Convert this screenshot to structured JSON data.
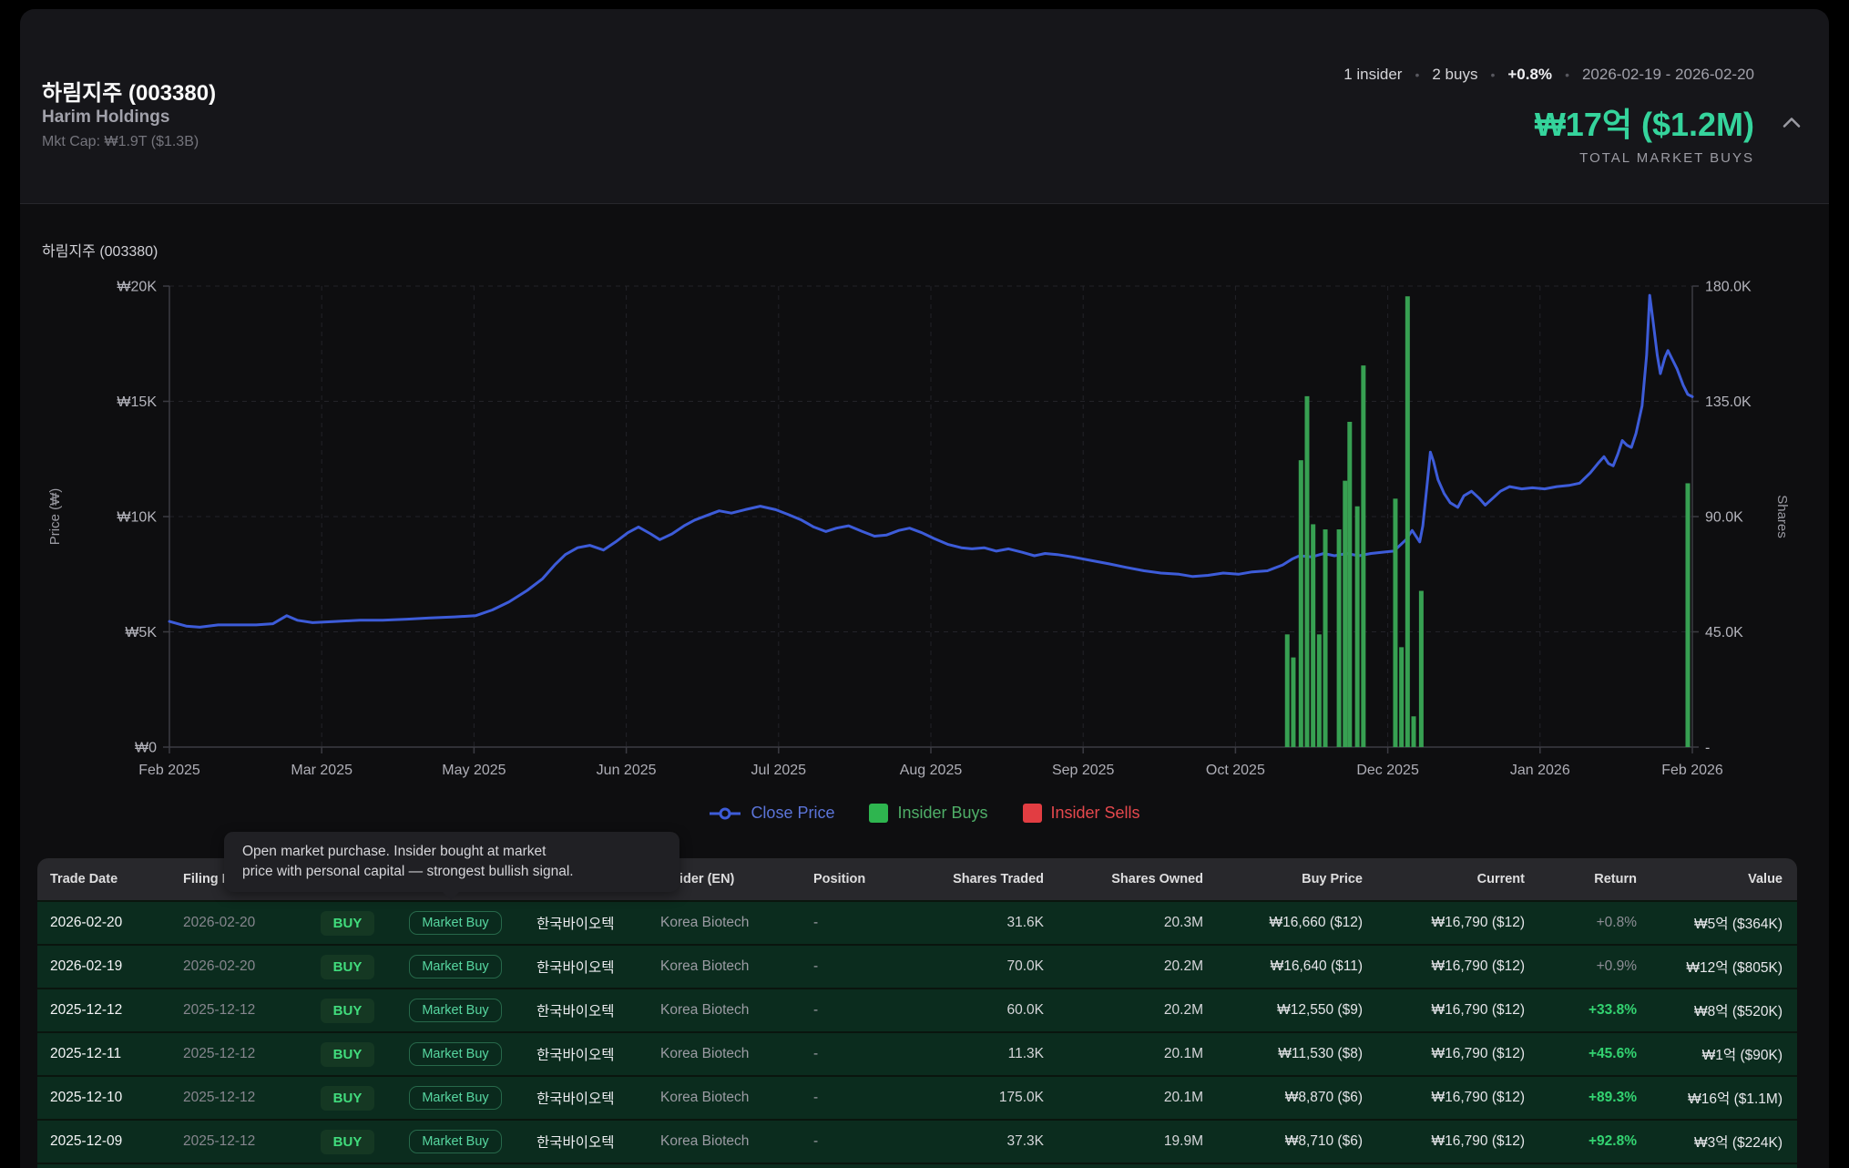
{
  "header": {
    "title": "하림지주 (003380)",
    "subtitle": "Harim Holdings",
    "mktcap": "Mkt Cap: ₩1.9T ($1.3B)",
    "stats": {
      "insiders": "1 insider",
      "buys": "2 buys",
      "change": "+0.8%",
      "range": "2026-02-19 - 2026-02-20",
      "dot": "•"
    },
    "total": {
      "amount": "₩17억 ($1.2M)",
      "label": "TOTAL MARKET BUYS"
    }
  },
  "tooltip": {
    "line1": "Open market purchase. Insider bought at market",
    "line2": "price with personal capital — strongest bullish signal."
  },
  "chart_data": {
    "type": "line+bar",
    "title": "하림지주 (003380)",
    "left_axis": {
      "label": "Price (₩)",
      "ticks": [
        "₩20K",
        "₩15K",
        "₩10K",
        "₩5K",
        "₩0"
      ],
      "range": [
        0,
        20000
      ]
    },
    "right_axis": {
      "label": "Shares",
      "ticks": [
        "180.0K",
        "135.0K",
        "90.0K",
        "45.0K",
        "-"
      ],
      "range": [
        0,
        180000
      ]
    },
    "x_ticks": [
      "Feb 2025",
      "Mar 2025",
      "May 2025",
      "Jun 2025",
      "Jul 2025",
      "Aug 2025",
      "Sep 2025",
      "Oct 2025",
      "Dec 2025",
      "Jan 2026",
      "Feb 2026"
    ],
    "grid": true,
    "legend_position": "bottom",
    "colors": {
      "line": "#3d5cd9",
      "bars": "#37a052",
      "sells": "#e23d42",
      "accent": "#35d49c"
    },
    "series": [
      {
        "name": "Close Price",
        "type": "line",
        "color": "#3d5cd9",
        "points": [
          [
            0.0,
            5450
          ],
          [
            0.011,
            5250
          ],
          [
            0.02,
            5200
          ],
          [
            0.032,
            5300
          ],
          [
            0.043,
            5300
          ],
          [
            0.057,
            5300
          ],
          [
            0.068,
            5350
          ],
          [
            0.077,
            5700
          ],
          [
            0.084,
            5500
          ],
          [
            0.094,
            5400
          ],
          [
            0.109,
            5450
          ],
          [
            0.125,
            5500
          ],
          [
            0.14,
            5500
          ],
          [
            0.156,
            5550
          ],
          [
            0.171,
            5600
          ],
          [
            0.187,
            5650
          ],
          [
            0.201,
            5700
          ],
          [
            0.212,
            5950
          ],
          [
            0.223,
            6300
          ],
          [
            0.235,
            6800
          ],
          [
            0.245,
            7300
          ],
          [
            0.253,
            7900
          ],
          [
            0.26,
            8350
          ],
          [
            0.268,
            8650
          ],
          [
            0.276,
            8750
          ],
          [
            0.285,
            8550
          ],
          [
            0.293,
            8900
          ],
          [
            0.301,
            9300
          ],
          [
            0.308,
            9550
          ],
          [
            0.316,
            9250
          ],
          [
            0.322,
            9000
          ],
          [
            0.33,
            9250
          ],
          [
            0.338,
            9600
          ],
          [
            0.345,
            9850
          ],
          [
            0.353,
            10050
          ],
          [
            0.361,
            10250
          ],
          [
            0.369,
            10150
          ],
          [
            0.378,
            10300
          ],
          [
            0.388,
            10450
          ],
          [
            0.398,
            10300
          ],
          [
            0.406,
            10100
          ],
          [
            0.415,
            9850
          ],
          [
            0.423,
            9550
          ],
          [
            0.431,
            9350
          ],
          [
            0.438,
            9500
          ],
          [
            0.446,
            9600
          ],
          [
            0.455,
            9350
          ],
          [
            0.463,
            9150
          ],
          [
            0.471,
            9200
          ],
          [
            0.479,
            9400
          ],
          [
            0.486,
            9500
          ],
          [
            0.494,
            9300
          ],
          [
            0.502,
            9050
          ],
          [
            0.511,
            8800
          ],
          [
            0.52,
            8650
          ],
          [
            0.527,
            8600
          ],
          [
            0.535,
            8650
          ],
          [
            0.543,
            8500
          ],
          [
            0.551,
            8600
          ],
          [
            0.56,
            8450
          ],
          [
            0.568,
            8300
          ],
          [
            0.575,
            8400
          ],
          [
            0.583,
            8350
          ],
          [
            0.593,
            8250
          ],
          [
            0.605,
            8100
          ],
          [
            0.617,
            7950
          ],
          [
            0.628,
            7800
          ],
          [
            0.64,
            7650
          ],
          [
            0.651,
            7550
          ],
          [
            0.663,
            7500
          ],
          [
            0.672,
            7400
          ],
          [
            0.682,
            7450
          ],
          [
            0.692,
            7550
          ],
          [
            0.702,
            7500
          ],
          [
            0.711,
            7600
          ],
          [
            0.721,
            7650
          ],
          [
            0.731,
            7900
          ],
          [
            0.737,
            8150
          ],
          [
            0.742,
            8300
          ],
          [
            0.75,
            8250
          ],
          [
            0.758,
            8400
          ],
          [
            0.765,
            8300
          ],
          [
            0.773,
            8400
          ],
          [
            0.781,
            8300
          ],
          [
            0.789,
            8400
          ],
          [
            0.796,
            8450
          ],
          [
            0.804,
            8500
          ],
          [
            0.812,
            9000
          ],
          [
            0.816,
            9400
          ],
          [
            0.819,
            9100
          ],
          [
            0.821,
            8900
          ],
          [
            0.823,
            9600
          ],
          [
            0.826,
            11500
          ],
          [
            0.828,
            12800
          ],
          [
            0.83,
            12400
          ],
          [
            0.833,
            11600
          ],
          [
            0.837,
            11000
          ],
          [
            0.841,
            10600
          ],
          [
            0.846,
            10400
          ],
          [
            0.85,
            10900
          ],
          [
            0.855,
            11100
          ],
          [
            0.86,
            10800
          ],
          [
            0.864,
            10500
          ],
          [
            0.869,
            10800
          ],
          [
            0.874,
            11100
          ],
          [
            0.88,
            11300
          ],
          [
            0.888,
            11200
          ],
          [
            0.895,
            11250
          ],
          [
            0.903,
            11200
          ],
          [
            0.911,
            11300
          ],
          [
            0.919,
            11350
          ],
          [
            0.926,
            11450
          ],
          [
            0.933,
            11900
          ],
          [
            0.938,
            12300
          ],
          [
            0.942,
            12600
          ],
          [
            0.945,
            12300
          ],
          [
            0.948,
            12200
          ],
          [
            0.951,
            12700
          ],
          [
            0.954,
            13300
          ],
          [
            0.957,
            13100
          ],
          [
            0.96,
            13000
          ],
          [
            0.963,
            13600
          ],
          [
            0.967,
            14800
          ],
          [
            0.97,
            17000
          ],
          [
            0.972,
            19600
          ],
          [
            0.974,
            18600
          ],
          [
            0.977,
            17000
          ],
          [
            0.979,
            16200
          ],
          [
            0.982,
            16900
          ],
          [
            0.984,
            17200
          ],
          [
            0.987,
            16800
          ],
          [
            0.99,
            16400
          ],
          [
            0.994,
            15700
          ],
          [
            0.997,
            15300
          ],
          [
            1.0,
            15200
          ]
        ]
      },
      {
        "name": "Insider Buys",
        "type": "bar",
        "color": "#37a052",
        "points": [
          [
            0.734,
            44000
          ],
          [
            0.738,
            35000
          ],
          [
            0.743,
            112000
          ],
          [
            0.747,
            137000
          ],
          [
            0.751,
            87000
          ],
          [
            0.755,
            44000
          ],
          [
            0.759,
            85000
          ],
          [
            0.768,
            85000
          ],
          [
            0.772,
            104000
          ],
          [
            0.775,
            127000
          ],
          [
            0.78,
            94000
          ],
          [
            0.784,
            149000
          ],
          [
            0.805,
            97000
          ],
          [
            0.809,
            39000
          ],
          [
            0.813,
            176000
          ],
          [
            0.817,
            12000
          ],
          [
            0.822,
            61000
          ],
          [
            0.997,
            103000
          ]
        ]
      },
      {
        "name": "Insider Sells",
        "type": "bar",
        "color": "#e23d42",
        "points": []
      }
    ],
    "legend": [
      {
        "label": "Close Price",
        "marker": "line",
        "color": "#3d5cd9",
        "text_color": "#5b74d8"
      },
      {
        "label": "Insider Buys",
        "marker": "square",
        "color": "#2eb54f",
        "text_color": "#4fae68"
      },
      {
        "label": "Insider Sells",
        "marker": "square",
        "color": "#e23d42",
        "text_color": "#e5484d"
      }
    ]
  },
  "table": {
    "columns": [
      {
        "label": "Trade Date",
        "align": "left"
      },
      {
        "label": "Filing Date",
        "align": "left"
      },
      {
        "label": "",
        "align": "left"
      },
      {
        "label": "",
        "align": "left"
      },
      {
        "label": "",
        "align": "left"
      },
      {
        "label": "Insider (EN)",
        "align": "left"
      },
      {
        "label": "Position",
        "align": "left"
      },
      {
        "label": "Shares Traded",
        "align": "right"
      },
      {
        "label": "Shares Owned",
        "align": "right"
      },
      {
        "label": "Buy Price",
        "align": "right"
      },
      {
        "label": "Current",
        "align": "right"
      },
      {
        "label": "Return",
        "align": "right"
      },
      {
        "label": "Value",
        "align": "right"
      }
    ],
    "rows": [
      {
        "trade_date": "2026-02-20",
        "filing_date": "2026-02-20",
        "type": "BUY",
        "tx": "Market Buy",
        "insider_kr": "한국바이오텍",
        "insider_en": "Korea Biotech",
        "position": "-",
        "shares_traded": "31.6K",
        "shares_owned": "20.3M",
        "buy_price": "₩16,660 ($12)",
        "current": "₩16,790 ($12)",
        "return": "+0.8%",
        "return_positive": false,
        "value": "₩5억 ($364K)"
      },
      {
        "trade_date": "2026-02-19",
        "filing_date": "2026-02-20",
        "type": "BUY",
        "tx": "Market Buy",
        "insider_kr": "한국바이오텍",
        "insider_en": "Korea Biotech",
        "position": "-",
        "shares_traded": "70.0K",
        "shares_owned": "20.2M",
        "buy_price": "₩16,640 ($11)",
        "current": "₩16,790 ($12)",
        "return": "+0.9%",
        "return_positive": false,
        "value": "₩12억 ($805K)"
      },
      {
        "trade_date": "2025-12-12",
        "filing_date": "2025-12-12",
        "type": "BUY",
        "tx": "Market Buy",
        "insider_kr": "한국바이오텍",
        "insider_en": "Korea Biotech",
        "position": "-",
        "shares_traded": "60.0K",
        "shares_owned": "20.2M",
        "buy_price": "₩12,550 ($9)",
        "current": "₩16,790 ($12)",
        "return": "+33.8%",
        "return_positive": true,
        "value": "₩8억 ($520K)"
      },
      {
        "trade_date": "2025-12-11",
        "filing_date": "2025-12-12",
        "type": "BUY",
        "tx": "Market Buy",
        "insider_kr": "한국바이오텍",
        "insider_en": "Korea Biotech",
        "position": "-",
        "shares_traded": "11.3K",
        "shares_owned": "20.1M",
        "buy_price": "₩11,530 ($8)",
        "current": "₩16,790 ($12)",
        "return": "+45.6%",
        "return_positive": true,
        "value": "₩1억 ($90K)"
      },
      {
        "trade_date": "2025-12-10",
        "filing_date": "2025-12-12",
        "type": "BUY",
        "tx": "Market Buy",
        "insider_kr": "한국바이오텍",
        "insider_en": "Korea Biotech",
        "position": "-",
        "shares_traded": "175.0K",
        "shares_owned": "20.1M",
        "buy_price": "₩8,870 ($6)",
        "current": "₩16,790 ($12)",
        "return": "+89.3%",
        "return_positive": true,
        "value": "₩16억 ($1.1M)"
      },
      {
        "trade_date": "2025-12-09",
        "filing_date": "2025-12-12",
        "type": "BUY",
        "tx": "Market Buy",
        "insider_kr": "한국바이오텍",
        "insider_en": "Korea Biotech",
        "position": "-",
        "shares_traded": "37.3K",
        "shares_owned": "19.9M",
        "buy_price": "₩8,710 ($6)",
        "current": "₩16,790 ($12)",
        "return": "+92.8%",
        "return_positive": true,
        "value": "₩3억 ($224K)"
      }
    ],
    "partial_row_visible": true
  }
}
